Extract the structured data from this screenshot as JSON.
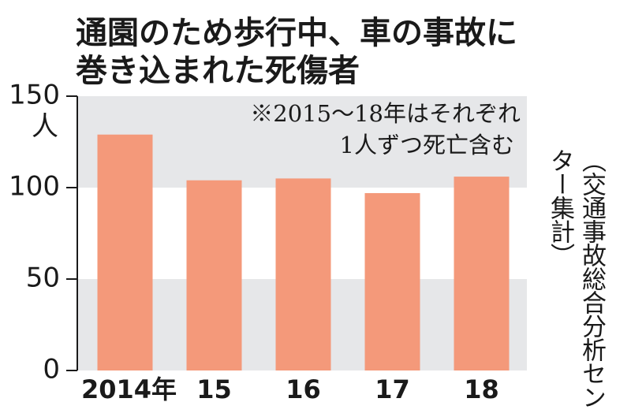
{
  "chart_data": {
    "type": "bar",
    "title": [
      "通園のため歩行中、車の事故に",
      "巻き込まれた死傷者"
    ],
    "y_unit": "人",
    "annotation": [
      "※2015～18年はそれぞれ",
      "1人ずつ死亡含む"
    ],
    "source": "（交通事故総合分析センター集計）",
    "categories": [
      "2014年",
      "15",
      "16",
      "17",
      "18"
    ],
    "values": [
      129,
      104,
      105,
      97,
      106
    ],
    "color": "#f4997a",
    "band_color": "#e6e7e9",
    "ylim": [
      0,
      150
    ],
    "yticks": [
      0,
      50,
      100,
      150
    ]
  }
}
